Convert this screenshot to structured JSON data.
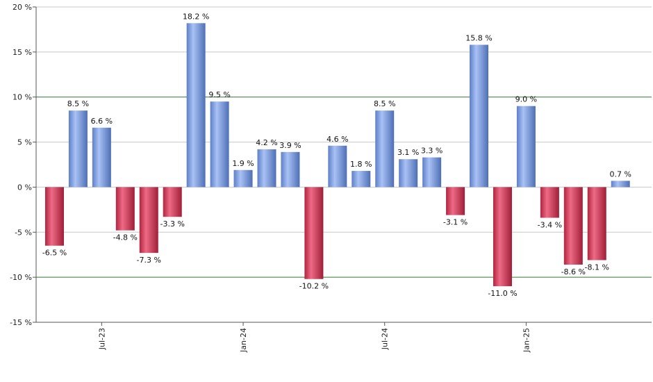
{
  "chart_data": {
    "type": "bar",
    "title": "",
    "xlabel": "",
    "ylabel": "",
    "unit": "%",
    "ylim": [
      -15,
      20
    ],
    "yticks": [
      20,
      15,
      10,
      5,
      0,
      -5,
      -10,
      -15
    ],
    "ytick_labels": [
      "20 %",
      "15 %",
      "10 %",
      "5 %",
      "0 %",
      "-5 %",
      "-10 %",
      "-15 %"
    ],
    "reference_lines": [
      10,
      -10
    ],
    "grid": true,
    "values": [
      -6.5,
      8.5,
      6.6,
      -4.8,
      -7.3,
      -3.3,
      18.2,
      9.5,
      1.9,
      4.2,
      3.9,
      -10.2,
      4.6,
      1.8,
      8.5,
      3.1,
      3.3,
      -3.1,
      15.8,
      -11.0,
      9.0,
      -3.4,
      -8.6,
      -8.1,
      0.7
    ],
    "value_labels": [
      "-6.5 %",
      "8.5 %",
      "6.6 %",
      "-4.8 %",
      "-7.3 %",
      "-3.3 %",
      "18.2 %",
      "9.5 %",
      "1.9 %",
      "4.2 %",
      "3.9 %",
      "-10.2 %",
      "4.6 %",
      "1.8 %",
      "8.5 %",
      "3.1 %",
      "3.3 %",
      "-3.1 %",
      "15.8 %",
      "-11.0 %",
      "9.0 %",
      "-3.4 %",
      "-8.6 %",
      "-8.1 %",
      "0.7 %"
    ],
    "x_ticks": [
      {
        "index": 2,
        "label": "Jul-23"
      },
      {
        "index": 8,
        "label": "Jan-24"
      },
      {
        "index": 14,
        "label": "Jul-24"
      },
      {
        "index": 20,
        "label": "Jan-25"
      }
    ],
    "colors": {
      "positive": "#7f9fe0",
      "negative": "#c8304f",
      "grid": "#c8c8c8",
      "reference": "#2f7a2f",
      "axis": "#555555"
    }
  }
}
